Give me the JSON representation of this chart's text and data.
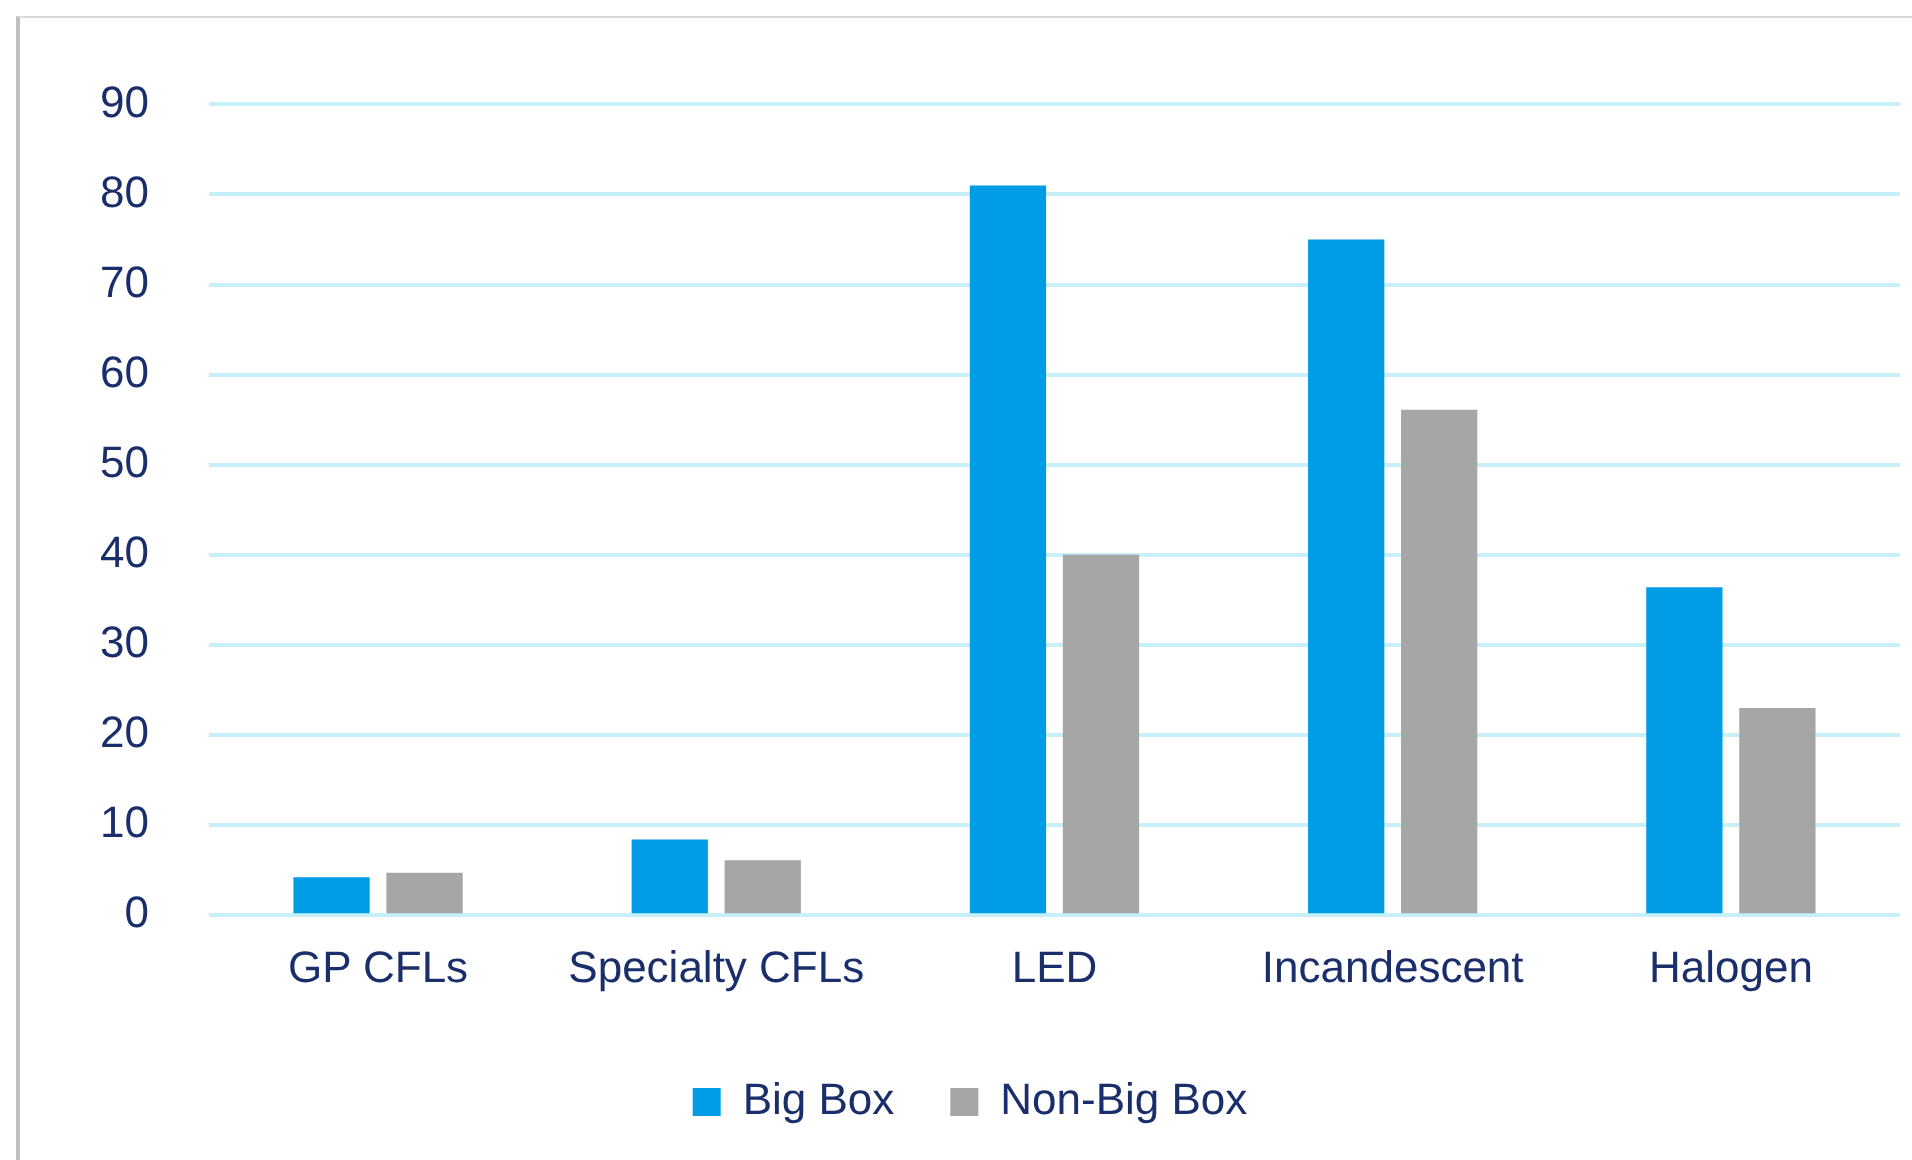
{
  "chart_data": {
    "type": "bar",
    "categories": [
      "GP CFLs",
      "Specialty CFLs",
      "LED",
      "Incandescent",
      "Halogen"
    ],
    "series": [
      {
        "name": "Big Box",
        "color": "#009de6",
        "values": [
          4.2,
          8.4,
          81,
          75,
          36.4
        ]
      },
      {
        "name": "Non-Big Box",
        "color": "#a6a6a6",
        "values": [
          4.7,
          6.1,
          40,
          56.1,
          23
        ]
      }
    ],
    "ylim": [
      0,
      90
    ],
    "yticks": [
      0,
      10,
      20,
      30,
      40,
      50,
      60,
      70,
      80,
      90
    ],
    "grid": "y",
    "legend": "bottom"
  }
}
